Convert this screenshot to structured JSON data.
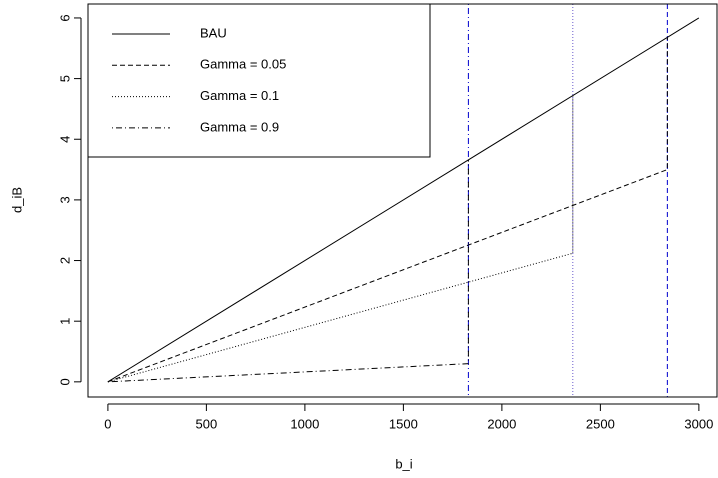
{
  "chart_data": {
    "type": "line",
    "x_label": "b_i",
    "y_label": "d_iB",
    "xlim": [
      -101,
      3092
    ],
    "ylim": [
      -0.25,
      6.23
    ],
    "xticks": [
      0,
      500,
      1000,
      1500,
      2000,
      2500,
      3000
    ],
    "yticks": [
      0,
      1,
      2,
      3,
      4,
      5,
      6
    ],
    "series": [
      {
        "name": "BAU",
        "color": "#000000",
        "linestyle": "solid",
        "x": [
          0,
          3000
        ],
        "values": [
          0,
          6
        ]
      },
      {
        "name": "Gamma = 0.05",
        "color": "#000000",
        "linestyle": "dashed",
        "x": [
          0,
          2840,
          2840
        ],
        "values": [
          0,
          3.5,
          5.68
        ]
      },
      {
        "name": "Gamma = 0.1",
        "color": "#000000",
        "linestyle": "dotted",
        "x": [
          0,
          2360,
          2360
        ],
        "values": [
          0,
          2.12,
          4.72
        ]
      },
      {
        "name": "Gamma = 0.9",
        "color": "#000000",
        "linestyle": "dotdash",
        "x": [
          0,
          1830,
          1830
        ],
        "values": [
          0,
          0.3,
          3.66
        ]
      }
    ],
    "vlines": [
      {
        "x": 1830,
        "color": "#0000cd",
        "linestyle": "dotdash"
      },
      {
        "x": 2360,
        "color": "#6a5acd",
        "linestyle": "dotted"
      },
      {
        "x": 2840,
        "color": "#0000cd",
        "linestyle": "dashed"
      }
    ],
    "legend": "top-left"
  }
}
